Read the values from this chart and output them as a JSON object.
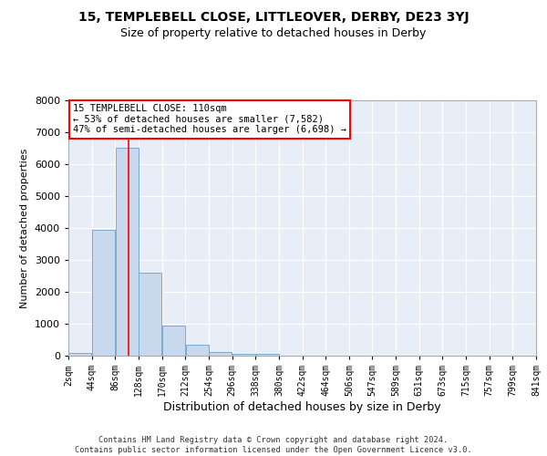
{
  "title_main": "15, TEMPLEBELL CLOSE, LITTLEOVER, DERBY, DE23 3YJ",
  "title_sub": "Size of property relative to detached houses in Derby",
  "xlabel": "Distribution of detached houses by size in Derby",
  "ylabel": "Number of detached properties",
  "bar_color": "#c8d9ee",
  "bar_edge_color": "#7aabcf",
  "background_color": "#e8eef8",
  "grid_color": "white",
  "property_line_x": 110,
  "annotation_line1": "15 TEMPLEBELL CLOSE: 110sqm",
  "annotation_line2": "← 53% of detached houses are smaller (7,582)",
  "annotation_line3": "47% of semi-detached houses are larger (6,698) →",
  "annotation_box_color": "white",
  "annotation_border_color": "red",
  "footer_text": "Contains HM Land Registry data © Crown copyright and database right 2024.\nContains public sector information licensed under the Open Government Licence v3.0.",
  "bin_edges": [
    2,
    44,
    86,
    128,
    170,
    212,
    254,
    296,
    338,
    380,
    422,
    464,
    506,
    547,
    589,
    631,
    673,
    715,
    757,
    799,
    841
  ],
  "bin_values": [
    75,
    3950,
    6500,
    2600,
    940,
    330,
    110,
    70,
    50,
    0,
    0,
    0,
    0,
    0,
    0,
    0,
    0,
    0,
    0,
    0
  ],
  "ylim": [
    0,
    8000
  ],
  "xlim": [
    2,
    841
  ],
  "title_fontsize": 10,
  "subtitle_fontsize": 9,
  "ylabel_fontsize": 8,
  "xlabel_fontsize": 9,
  "tick_fontsize": 7
}
